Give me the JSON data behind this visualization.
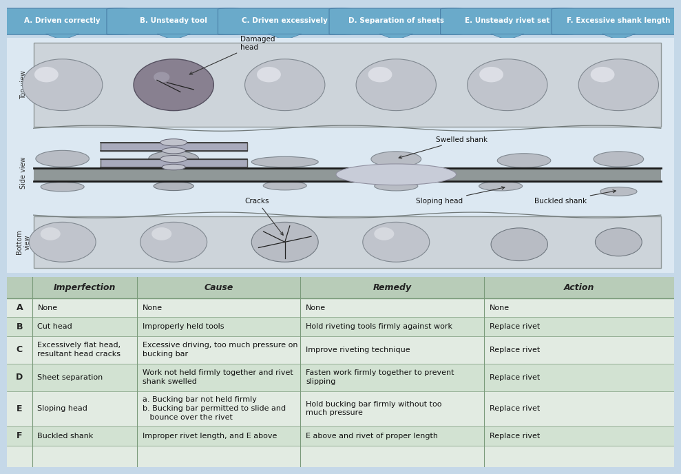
{
  "header_labels": [
    "A. Driven correctly",
    "B. Unsteady tool",
    "C. Driven excessively",
    "D. Separation of sheets",
    "E. Unsteady rivet set",
    "F. Excessive shank length"
  ],
  "header_bg": "#6aaaca",
  "header_text": "#ffffff",
  "outer_bg": "#c5d8e8",
  "diagram_bg": "#dce8f2",
  "sheet_bg": "#cdd4da",
  "side_bg": "#dce8f2",
  "table_header_bg": "#b8ccb8",
  "table_row_a_bg": "#e2ebe2",
  "table_row_b_bg": "#d2e2d2",
  "table_border": "#7a9a7a",
  "table_rows": [
    {
      "letter": "A",
      "imperfection": "None",
      "cause": "None",
      "remedy": "None",
      "action": "None"
    },
    {
      "letter": "B",
      "imperfection": "Cut head",
      "cause": "Improperly held tools",
      "remedy": "Hold riveting tools firmly against work",
      "action": "Replace rivet"
    },
    {
      "letter": "C",
      "imperfection": "Excessively flat head,\nresultant head cracks",
      "cause": "Excessive driving, too much pressure on\nbucking bar",
      "remedy": "Improve riveting technique",
      "action": "Replace rivet"
    },
    {
      "letter": "D",
      "imperfection": "Sheet separation",
      "cause": "Work not held firmly together and rivet\nshank swelled",
      "remedy": "Fasten work firmly together to prevent\nslipping",
      "action": "Replace rivet"
    },
    {
      "letter": "E",
      "imperfection": "Sloping head",
      "cause": "a. Bucking bar not held firmly\nb. Bucking bar permitted to slide and\n   bounce over the rivet",
      "remedy": "Hold bucking bar firmly without too\nmuch pressure",
      "action": "Replace rivet"
    },
    {
      "letter": "F",
      "imperfection": "Buckled shank",
      "cause": "Improper rivet length, and E above",
      "remedy": "E above and rivet of proper length",
      "action": "Replace rivet"
    }
  ]
}
